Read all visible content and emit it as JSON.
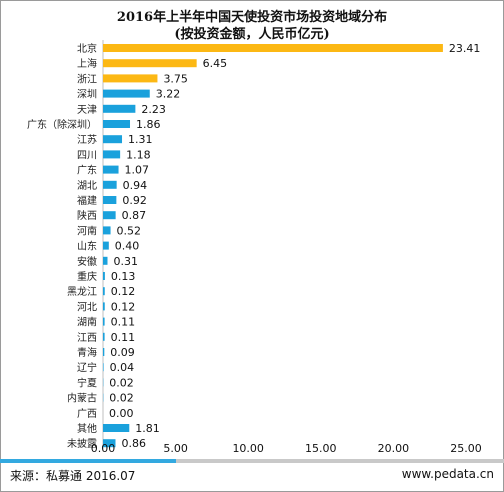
{
  "chart_data": {
    "type": "bar",
    "orientation": "horizontal",
    "title": "2016年上半年中国天使投资市场投资地域分布",
    "subtitle": "(按投资金额，人民币亿元)",
    "categories": [
      "北京",
      "上海",
      "浙江",
      "深圳",
      "天津",
      "广东（除深圳）",
      "江苏",
      "四川",
      "广东",
      "湖北",
      "福建",
      "陕西",
      "河南",
      "山东",
      "安徽",
      "重庆",
      "黑龙江",
      "河北",
      "湖南",
      "江西",
      "青海",
      "辽宁",
      "宁夏",
      "内蒙古",
      "广西",
      "其他",
      "未披露"
    ],
    "values": [
      23.41,
      6.45,
      3.75,
      3.22,
      2.23,
      1.86,
      1.31,
      1.18,
      1.07,
      0.94,
      0.92,
      0.87,
      0.52,
      0.4,
      0.31,
      0.13,
      0.12,
      0.12,
      0.11,
      0.11,
      0.09,
      0.04,
      0.02,
      0.02,
      0.0,
      1.81,
      0.86
    ],
    "value_labels": [
      "23.41",
      "6.45",
      "3.75",
      "3.22",
      "2.23",
      "1.86",
      "1.31",
      "1.18",
      "1.07",
      "0.94",
      "0.92",
      "0.87",
      "0.52",
      "0.40",
      "0.31",
      "0.13",
      "0.12",
      "0.12",
      "0.11",
      "0.11",
      "0.09",
      "0.04",
      "0.02",
      "0.02",
      "0.00",
      "1.81",
      "0.86"
    ],
    "xlim": [
      0,
      25
    ],
    "xticks": [
      "0.00",
      "5.00",
      "10.00",
      "15.00",
      "20.00",
      "25.00"
    ],
    "xtick_values": [
      0,
      5,
      10,
      15,
      20,
      25
    ],
    "highlight_count": 3,
    "colors": {
      "highlight": "#fcb814",
      "default": "#1aa1dc"
    },
    "grid": false
  },
  "footer": {
    "source": "来源：私募通 2016.07",
    "url": "www.pedata.cn"
  }
}
